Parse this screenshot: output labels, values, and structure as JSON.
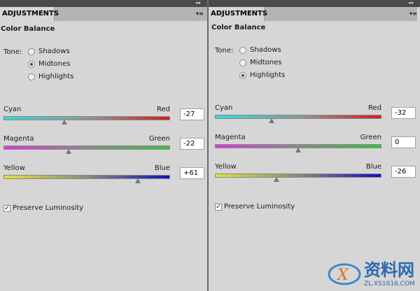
{
  "panels": [
    {
      "tab": "ADJUSTMENTS",
      "title": "Color Balance",
      "tone_label": "Tone:",
      "tones": [
        "Shadows",
        "Midtones",
        "Highlights"
      ],
      "selected_tone": 1,
      "sliders": [
        {
          "left": "Cyan",
          "right": "Red",
          "value": -27
        },
        {
          "left": "Magenta",
          "right": "Green",
          "value": -22
        },
        {
          "left": "Yellow",
          "right": "Blue",
          "value": 61,
          "label": "+61"
        }
      ],
      "preserve_luminosity": {
        "label": "Preserve Luminosity",
        "checked": true
      }
    },
    {
      "tab": "ADJUSTMENTS",
      "title": "Color Balance",
      "tone_label": "Tone:",
      "tones": [
        "Shadows",
        "Midtones",
        "Highlights"
      ],
      "selected_tone": 2,
      "sliders": [
        {
          "left": "Cyan",
          "right": "Red",
          "value": -32
        },
        {
          "left": "Magenta",
          "right": "Green",
          "value": 0
        },
        {
          "left": "Yellow",
          "right": "Blue",
          "value": -26
        }
      ],
      "preserve_luminosity": {
        "label": "Preserve Luminosity",
        "checked": true
      }
    }
  ],
  "watermark": {
    "name": "资料网",
    "url": "ZL.XS1616.COM"
  }
}
